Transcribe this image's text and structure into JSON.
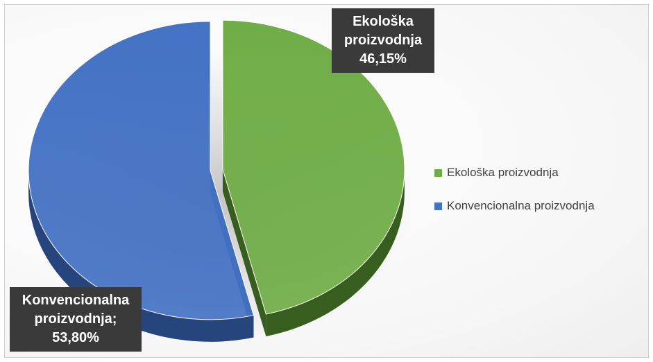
{
  "chart_data": {
    "type": "pie",
    "style": "3d-exploded",
    "slices": [
      {
        "name": "Ekološka proizvodnja",
        "value": 46.15,
        "label_lines": [
          "Ekološka",
          "proizvodnja",
          "46,15%"
        ],
        "color": "#70ad47",
        "side_color": "#375d1f"
      },
      {
        "name": "Konvencionalna proizvodnja",
        "value": 53.8,
        "label_lines": [
          "Konvencionalna",
          "proizvodnja;",
          "53,80%"
        ],
        "color": "#4472c4",
        "side_color": "#27457d"
      }
    ],
    "legend": {
      "placement": "right",
      "items": [
        "Ekološka proizvodnja",
        "Konvencionalna proizvodnja"
      ]
    }
  }
}
